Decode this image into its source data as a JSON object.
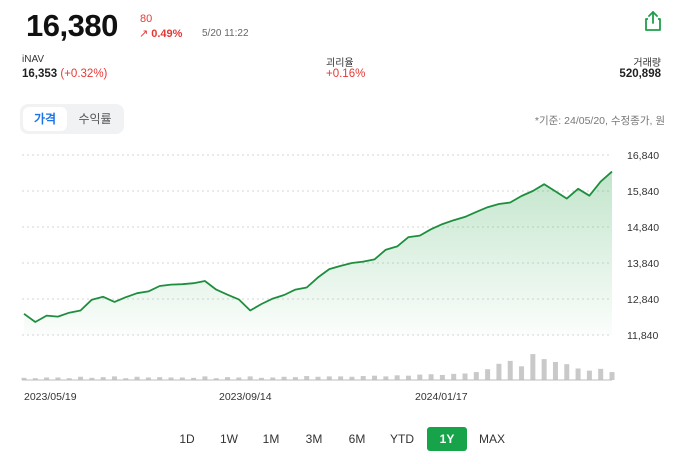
{
  "header": {
    "price": "16,380",
    "change_abs": "80",
    "change_pct": "0.49%",
    "change_arrow": "↗",
    "timestamp": "5/20 11:22",
    "share_icon": "share-icon"
  },
  "stats": {
    "inav_label": "iNAV",
    "inav_value": "16,353",
    "inav_change": "(+0.32%)",
    "deviation_label": "괴리율",
    "deviation_value": "+0.16%",
    "volume_label": "거래량",
    "volume_value": "520,898"
  },
  "toggle": {
    "price_label": "가격",
    "return_label": "수익률"
  },
  "basis_note": "*기준: 24/05/20, 수정종가, 원",
  "colors": {
    "up": "#e53935",
    "line": "#1e8e3e",
    "active_range": "#16a34a",
    "accent": "#1a73e8"
  },
  "ranges": [
    {
      "label": "1D",
      "active": false
    },
    {
      "label": "1W",
      "active": false
    },
    {
      "label": "1M",
      "active": false
    },
    {
      "label": "3M",
      "active": false
    },
    {
      "label": "6M",
      "active": false
    },
    {
      "label": "YTD",
      "active": false
    },
    {
      "label": "1Y",
      "active": true
    },
    {
      "label": "MAX",
      "active": false
    }
  ],
  "chart_data": {
    "type": "line",
    "title": "",
    "xlabel": "",
    "ylabel": "",
    "yticks": [
      16840,
      15840,
      14840,
      13840,
      12840,
      11840
    ],
    "ytick_labels": [
      "16,840",
      "15,840",
      "14,840",
      "13,840",
      "12,840",
      "11,840"
    ],
    "ylim": [
      11840,
      16840
    ],
    "x_tick_labels": [
      "2023/05/19",
      "2023/09/14",
      "2024/01/17"
    ],
    "x": [
      "2023-05-19",
      "2023-05-26",
      "2023-06-02",
      "2023-06-09",
      "2023-06-16",
      "2023-06-23",
      "2023-06-30",
      "2023-07-07",
      "2023-07-14",
      "2023-07-21",
      "2023-07-28",
      "2023-08-04",
      "2023-08-11",
      "2023-08-18",
      "2023-08-25",
      "2023-09-01",
      "2023-09-08",
      "2023-09-14",
      "2023-09-22",
      "2023-09-29",
      "2023-10-06",
      "2023-10-13",
      "2023-10-20",
      "2023-10-27",
      "2023-11-03",
      "2023-11-10",
      "2023-11-17",
      "2023-11-24",
      "2023-12-01",
      "2023-12-08",
      "2023-12-15",
      "2023-12-22",
      "2023-12-29",
      "2024-01-05",
      "2024-01-12",
      "2024-01-17",
      "2024-01-26",
      "2024-02-02",
      "2024-02-09",
      "2024-02-16",
      "2024-02-23",
      "2024-03-01",
      "2024-03-08",
      "2024-03-15",
      "2024-03-22",
      "2024-03-29",
      "2024-04-05",
      "2024-04-12",
      "2024-04-19",
      "2024-04-26",
      "2024-05-03",
      "2024-05-10",
      "2024-05-20"
    ],
    "series": [
      {
        "values": [
          12430,
          12200,
          12380,
          12350,
          12460,
          12520,
          12820,
          12900,
          12760,
          12890,
          13000,
          13050,
          13200,
          13240,
          13250,
          13280,
          13340,
          13100,
          12960,
          12830,
          12520,
          12700,
          12850,
          12950,
          13100,
          13160,
          13440,
          13670,
          13760,
          13840,
          13880,
          13940,
          14210,
          14300,
          14560,
          14600,
          14780,
          14920,
          15030,
          15120,
          15260,
          15390,
          15480,
          15520,
          15700,
          15840,
          16030,
          15830,
          15630,
          15900,
          15710,
          16100,
          16380
        ]
      }
    ],
    "volume_relative": [
      0.06,
      0.05,
      0.07,
      0.07,
      0.05,
      0.09,
      0.06,
      0.08,
      0.1,
      0.05,
      0.09,
      0.07,
      0.08,
      0.07,
      0.07,
      0.06,
      0.1,
      0.05,
      0.08,
      0.07,
      0.1,
      0.06,
      0.07,
      0.09,
      0.08,
      0.11,
      0.09,
      0.1,
      0.1,
      0.09,
      0.11,
      0.12,
      0.1,
      0.13,
      0.12,
      0.15,
      0.16,
      0.14,
      0.17,
      0.18,
      0.22,
      0.3,
      0.45,
      0.53,
      0.38,
      0.72,
      0.58,
      0.5,
      0.44,
      0.32,
      0.26,
      0.31,
      0.22
    ],
    "legend": "none",
    "grid": true
  }
}
